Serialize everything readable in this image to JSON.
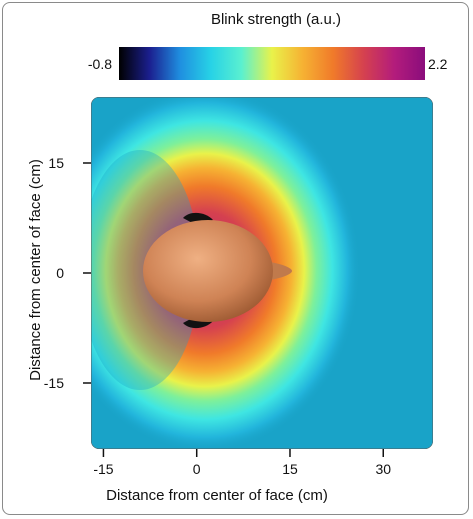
{
  "chart_data": {
    "type": "heatmap",
    "title": "",
    "colorbar": {
      "label": "Blink strength (a.u.)",
      "min_label": "-0.8",
      "max_label": "2.2",
      "min": -0.8,
      "max": 2.2,
      "colormap": [
        "#000000",
        "#1b1f8f",
        "#1f8fe0",
        "#27d2e6",
        "#5af0d0",
        "#e9f24a",
        "#f6b233",
        "#f07a2a",
        "#d5414f",
        "#b31c7c",
        "#8a0d7c"
      ]
    },
    "xlabel": "Distance from center of face (cm)",
    "ylabel": "Distance from center of face (cm)",
    "xlim": [
      -17,
      38
    ],
    "ylim": [
      -24,
      24
    ],
    "xticks": [
      {
        "value": -15,
        "label": "-15"
      },
      {
        "value": 0,
        "label": "0"
      },
      {
        "value": 15,
        "label": "15"
      },
      {
        "value": 30,
        "label": "30"
      }
    ],
    "yticks": [
      {
        "value": 15,
        "label": "15"
      },
      {
        "value": 0,
        "label": "0"
      },
      {
        "value": -15,
        "label": "-15"
      }
    ],
    "background_level": -0.1,
    "field_peak": 2.0,
    "head_center": [
      0,
      0
    ]
  }
}
